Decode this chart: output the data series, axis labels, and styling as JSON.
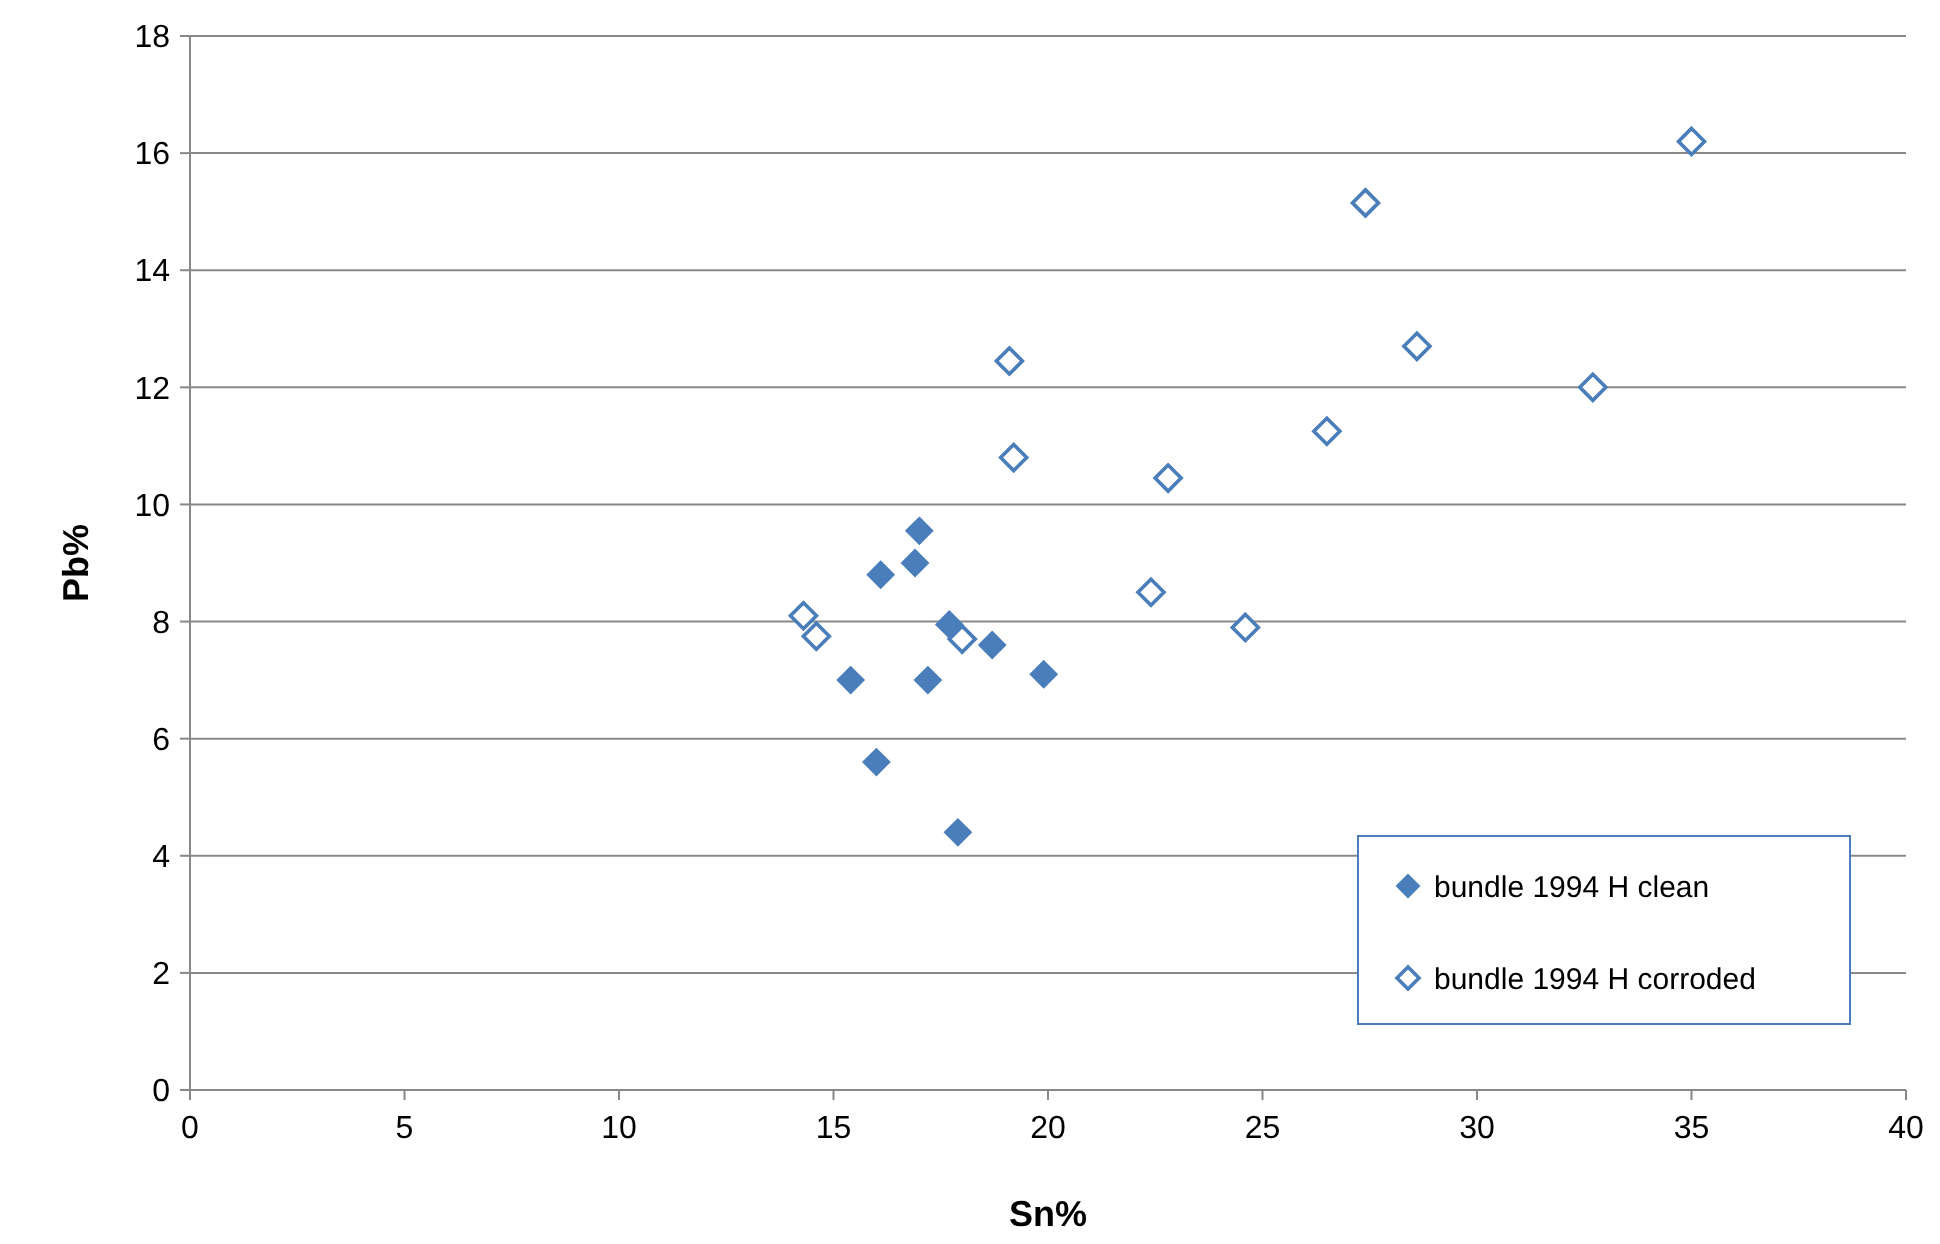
{
  "chart_data": {
    "type": "scatter",
    "xlabel": "Sn%",
    "ylabel": "Pb%",
    "xlim": [
      0,
      40
    ],
    "xticks": [
      0,
      5,
      10,
      15,
      20,
      25,
      30,
      35,
      40
    ],
    "ylim": [
      0,
      18
    ],
    "yticks": [
      0,
      2,
      4,
      6,
      8,
      10,
      12,
      14,
      16,
      18
    ],
    "grid": "y",
    "legend": "bottom right",
    "series": [
      {
        "name": "bundle 1994 H clean",
        "color": "#4a7ebb",
        "marker": "diamond",
        "x": [
          15.4,
          16.1,
          16.0,
          17.0,
          16.9,
          17.7,
          17.2,
          17.9,
          18.7,
          19.9
        ],
        "values": [
          7.0,
          8.8,
          5.6,
          9.55,
          9.0,
          7.95,
          7.0,
          4.4,
          7.6,
          7.1
        ]
      },
      {
        "name": "bundle 1994 H corroded",
        "color": "#4a7ebb",
        "marker": "diamond-open",
        "x": [
          14.3,
          14.6,
          18.0,
          19.1,
          19.2,
          22.4,
          22.8,
          24.6,
          26.5,
          27.4,
          28.6,
          32.7,
          35.0
        ],
        "values": [
          8.1,
          7.75,
          7.7,
          12.45,
          10.8,
          8.5,
          10.45,
          7.9,
          11.25,
          15.15,
          12.7,
          12.0,
          16.2
        ]
      }
    ]
  }
}
